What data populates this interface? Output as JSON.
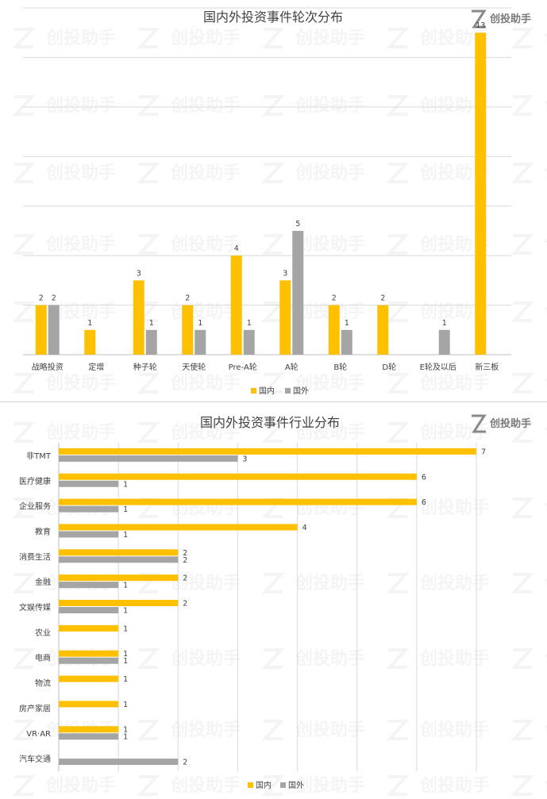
{
  "brand": {
    "name": "创投助手"
  },
  "colors": {
    "domestic": "#FFC000",
    "foreign": "#A5A5A5",
    "grid": "#d9d9d9",
    "axis": "#bfbfbf",
    "text": "#404040"
  },
  "chart_data": [
    {
      "type": "bar",
      "orientation": "vertical",
      "title": "国内外投资事件轮次分布",
      "categories": [
        "战略投资",
        "定增",
        "种子轮",
        "天使轮",
        "Pre-A轮",
        "A轮",
        "B轮",
        "D轮",
        "E轮及以后",
        "新三板"
      ],
      "series": [
        {
          "name": "国内",
          "values": [
            2,
            1,
            3,
            2,
            4,
            3,
            2,
            2,
            null,
            13
          ]
        },
        {
          "name": "国外",
          "values": [
            2,
            null,
            1,
            1,
            1,
            5,
            1,
            null,
            1,
            null
          ]
        }
      ],
      "ylim": [
        0,
        14
      ],
      "grid": true,
      "legend": "bottom"
    },
    {
      "type": "bar",
      "orientation": "horizontal",
      "title": "国内外投资事件行业分布",
      "categories": [
        "非TMT",
        "医疗健康",
        "企业服务",
        "教育",
        "消费生活",
        "金融",
        "文娱传媒",
        "农业",
        "电商",
        "物流",
        "房产家居",
        "VR·AR",
        "汽车交通"
      ],
      "series": [
        {
          "name": "国内",
          "values": [
            7,
            6,
            6,
            4,
            2,
            2,
            2,
            1,
            1,
            1,
            1,
            1,
            null
          ]
        },
        {
          "name": "国外",
          "values": [
            3,
            1,
            1,
            1,
            2,
            1,
            1,
            null,
            1,
            null,
            null,
            1,
            2
          ]
        }
      ],
      "xlim": [
        0,
        7
      ],
      "grid": true,
      "legend": "bottom"
    }
  ]
}
